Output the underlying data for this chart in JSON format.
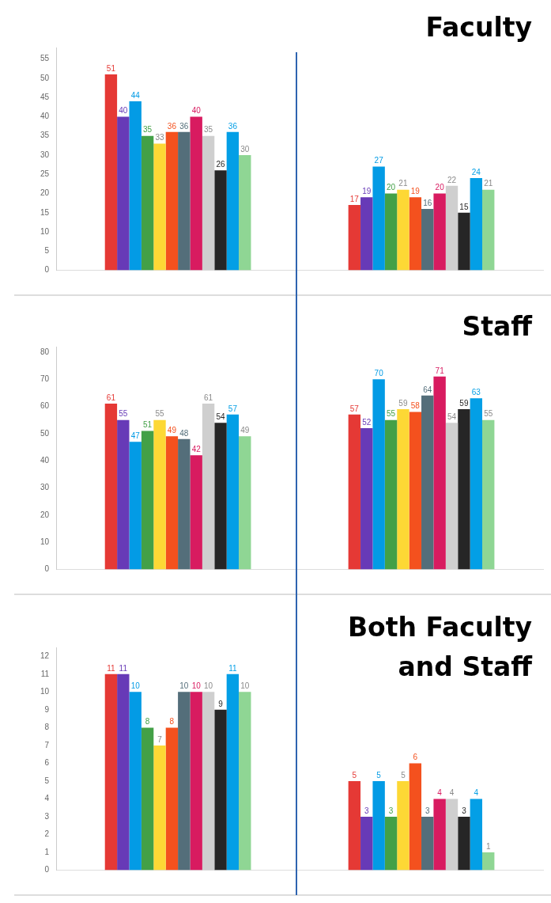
{
  "chart_data": [
    {
      "type": "bar",
      "title": "Faculty",
      "categories": [
        null,
        null
      ],
      "ylim": [
        0,
        58
      ],
      "yticks": [
        0,
        5,
        10,
        15,
        20,
        25,
        30,
        35,
        40,
        45,
        50,
        55
      ],
      "grid": false,
      "legend": false,
      "data_labels": true,
      "series": [
        {
          "color": "#e53935",
          "values": [
            51,
            17
          ]
        },
        {
          "color": "#673ab7",
          "values": [
            40,
            19
          ]
        },
        {
          "color": "#039be5",
          "values": [
            44,
            27
          ]
        },
        {
          "color": "#43a047",
          "values": [
            35,
            20
          ]
        },
        {
          "color": "#fdd835",
          "values": [
            33,
            21
          ]
        },
        {
          "color": "#f4511e",
          "values": [
            36,
            19
          ]
        },
        {
          "color": "#546e7a",
          "values": [
            36,
            16
          ]
        },
        {
          "color": "#d81b60",
          "values": [
            40,
            20
          ]
        },
        {
          "color": "#cfcfcf",
          "values": [
            35,
            22
          ]
        },
        {
          "color": "#262626",
          "values": [
            26,
            15
          ]
        },
        {
          "color": "#039fe6",
          "values": [
            36,
            24
          ]
        },
        {
          "color": "#8fd694",
          "values": [
            30,
            21
          ]
        }
      ]
    },
    {
      "type": "bar",
      "title": "Staff",
      "categories": [
        null,
        null
      ],
      "ylim": [
        0,
        82
      ],
      "yticks": [
        0,
        10,
        20,
        30,
        40,
        50,
        60,
        70,
        80
      ],
      "grid": false,
      "legend": false,
      "data_labels": true,
      "series": [
        {
          "color": "#e53935",
          "values": [
            61,
            57
          ]
        },
        {
          "color": "#673ab7",
          "values": [
            55,
            52
          ]
        },
        {
          "color": "#039be5",
          "values": [
            47,
            70
          ]
        },
        {
          "color": "#43a047",
          "values": [
            51,
            55
          ]
        },
        {
          "color": "#fdd835",
          "values": [
            55,
            59
          ]
        },
        {
          "color": "#f4511e",
          "values": [
            49,
            58
          ]
        },
        {
          "color": "#546e7a",
          "values": [
            48,
            64
          ]
        },
        {
          "color": "#d81b60",
          "values": [
            42,
            71
          ]
        },
        {
          "color": "#cfcfcf",
          "values": [
            61,
            54
          ]
        },
        {
          "color": "#262626",
          "values": [
            54,
            59
          ]
        },
        {
          "color": "#039fe6",
          "values": [
            57,
            63
          ]
        },
        {
          "color": "#8fd694",
          "values": [
            49,
            55
          ]
        }
      ]
    },
    {
      "type": "bar",
      "title": "Both Faculty and Staff",
      "categories": [
        null,
        null
      ],
      "ylim": [
        0,
        12.5
      ],
      "yticks": [
        0,
        1,
        2,
        3,
        4,
        5,
        6,
        7,
        8,
        9,
        10,
        11,
        12
      ],
      "grid": false,
      "legend": false,
      "data_labels": true,
      "series": [
        {
          "color": "#e53935",
          "values": [
            11,
            5
          ]
        },
        {
          "color": "#673ab7",
          "values": [
            11,
            3
          ]
        },
        {
          "color": "#039be5",
          "values": [
            10,
            5
          ]
        },
        {
          "color": "#43a047",
          "values": [
            8,
            3
          ]
        },
        {
          "color": "#fdd835",
          "values": [
            7,
            5
          ]
        },
        {
          "color": "#f4511e",
          "values": [
            8,
            6
          ]
        },
        {
          "color": "#546e7a",
          "values": [
            10,
            3
          ]
        },
        {
          "color": "#d81b60",
          "values": [
            10,
            4
          ]
        },
        {
          "color": "#cfcfcf",
          "values": [
            10,
            4
          ]
        },
        {
          "color": "#262626",
          "values": [
            9,
            3
          ]
        },
        {
          "color": "#039fe6",
          "values": [
            11,
            4
          ]
        },
        {
          "color": "#8fd694",
          "values": [
            10,
            1
          ]
        }
      ]
    }
  ]
}
